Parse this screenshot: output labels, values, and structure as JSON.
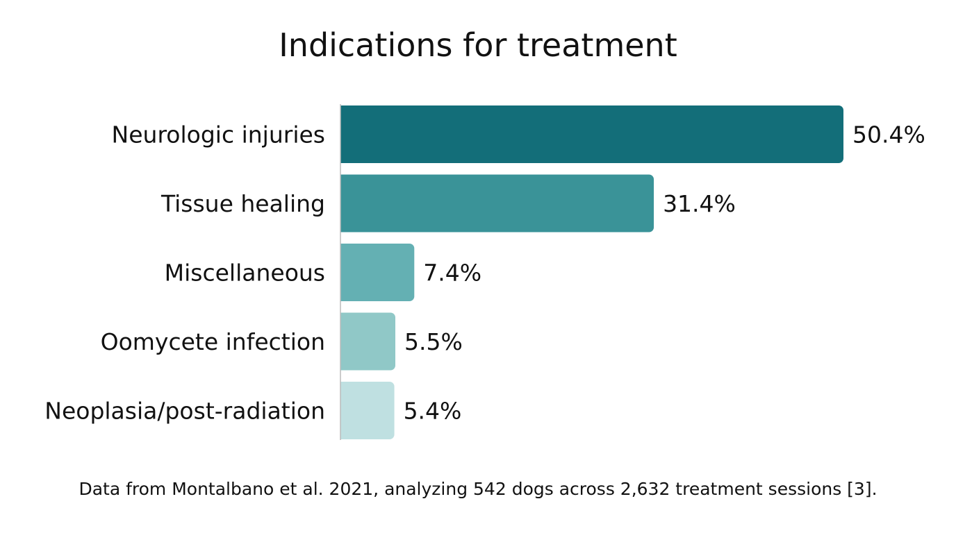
{
  "chart_data": {
    "type": "bar",
    "orientation": "horizontal",
    "title": "Indications for treatment",
    "categories": [
      "Neurologic injuries",
      "Tissue healing",
      "Miscellaneous",
      "Oomycete infection",
      "Neoplasia/post-radiation"
    ],
    "values": [
      50.4,
      31.4,
      7.4,
      5.5,
      5.4
    ],
    "data_labels": [
      "50.4%",
      "31.4%",
      "7.4%",
      "5.5%",
      "5.4%"
    ],
    "colors": [
      "#136e79",
      "#3a9398",
      "#64b0b3",
      "#90c8c7",
      "#bfe0e1"
    ],
    "xlabel": "",
    "ylabel": "",
    "xlim": [
      0,
      50.4
    ],
    "grid": false,
    "legend": "none"
  },
  "source_note": "Data from Montalbano et al. 2021, analyzing 542 dogs across 2,632 treatment sessions [3]."
}
